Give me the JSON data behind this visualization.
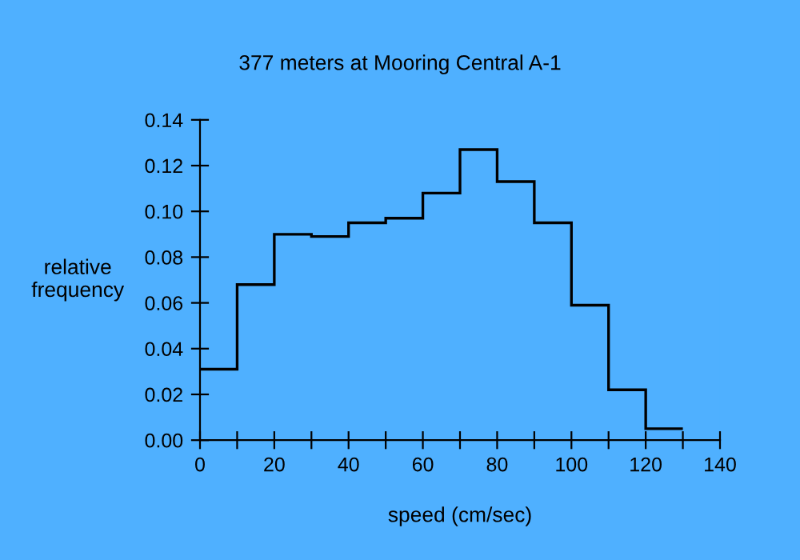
{
  "chart_data": {
    "type": "histogram",
    "title": "377 meters at Mooring Central A-1",
    "xlabel": "speed (cm/sec)",
    "ylabel": "relative\nfrequency",
    "bins": [
      0,
      10,
      20,
      30,
      40,
      50,
      60,
      70,
      80,
      90,
      100,
      110,
      120,
      130
    ],
    "values": [
      0.031,
      0.068,
      0.09,
      0.089,
      0.095,
      0.097,
      0.108,
      0.127,
      0.113,
      0.095,
      0.059,
      0.022,
      0.005
    ],
    "color": "#000000",
    "xlim": [
      0,
      140
    ],
    "xticks": [
      0,
      {
        "value": 10,
        "label": null
      },
      20,
      {
        "value": 30,
        "label": null
      },
      40,
      {
        "value": 50,
        "label": null
      },
      60,
      {
        "value": 70,
        "label": null
      },
      80,
      {
        "value": 90,
        "label": null
      },
      100,
      {
        "value": 110,
        "label": null
      },
      120,
      {
        "value": 130,
        "label": null
      },
      140
    ],
    "ylim": [
      0,
      0.14
    ],
    "yticks": [
      {
        "value": 0,
        "label": "0.00"
      },
      {
        "value": 0.02,
        "label": "0.02"
      },
      {
        "value": 0.04,
        "label": "0.04"
      },
      {
        "value": 0.06,
        "label": "0.06"
      },
      {
        "value": 0.08,
        "label": "0.08"
      },
      {
        "value": 0.1,
        "label": "0.10"
      },
      {
        "value": 0.12,
        "label": "0.12"
      },
      {
        "value": 0.14,
        "label": "0.14"
      }
    ],
    "grid": false,
    "legend": false
  }
}
